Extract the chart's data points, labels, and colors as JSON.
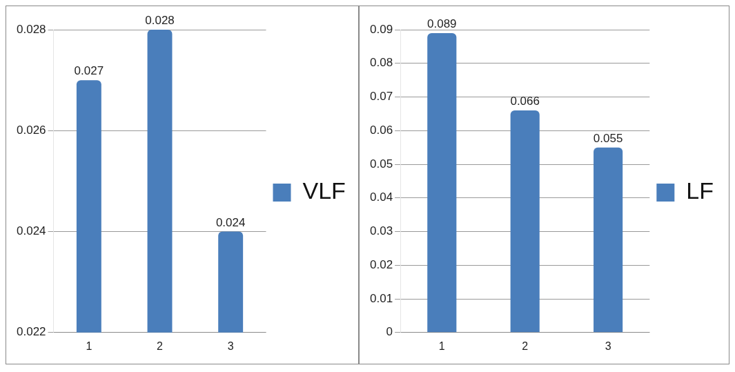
{
  "chart_data": [
    {
      "type": "bar",
      "categories": [
        "1",
        "2",
        "3"
      ],
      "series": [
        {
          "name": "VLF",
          "color": "#4a7ebb",
          "values": [
            0.027,
            0.028,
            0.024
          ]
        }
      ],
      "ylim": [
        0.022,
        0.028
      ],
      "yticks": [
        0.022,
        0.024,
        0.026,
        0.028
      ],
      "grid": "y",
      "legend": "right",
      "data_labels": true
    },
    {
      "type": "bar",
      "categories": [
        "1",
        "2",
        "3"
      ],
      "series": [
        {
          "name": "LF",
          "color": "#4a7ebb",
          "values": [
            0.089,
            0.066,
            0.055
          ]
        }
      ],
      "ylim": [
        0,
        0.09
      ],
      "yticks": [
        0,
        0.01,
        0.02,
        0.03,
        0.04,
        0.05,
        0.06,
        0.07,
        0.08,
        0.09
      ],
      "grid": "y",
      "legend": "right",
      "data_labels": true
    }
  ]
}
